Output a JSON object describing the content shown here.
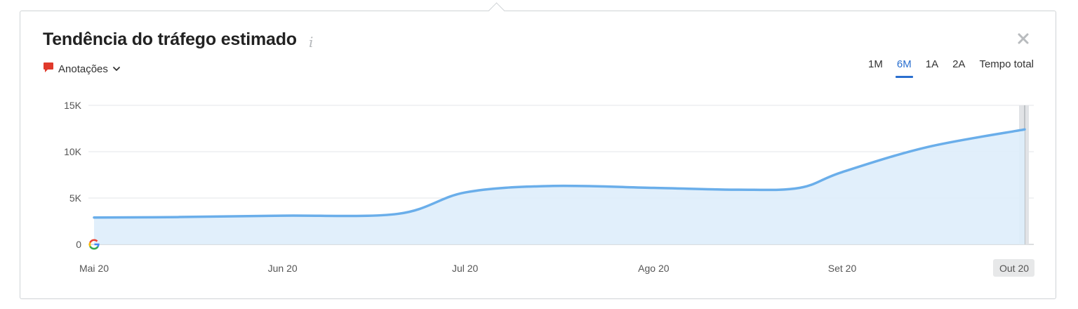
{
  "header": {
    "title": "Tendência do tráfego estimado",
    "info_icon": "info-icon",
    "close_icon": "close-icon"
  },
  "annotations": {
    "icon": "speech-bubble-icon",
    "label": "Anotações",
    "chevron": "chevron-down-icon"
  },
  "periods": [
    {
      "label": "1M",
      "active": false
    },
    {
      "label": "6M",
      "active": true
    },
    {
      "label": "1A",
      "active": false
    },
    {
      "label": "2A",
      "active": false
    },
    {
      "label": "Tempo total",
      "active": false
    }
  ],
  "colors": {
    "accent": "#2a6fcf",
    "line": "#6aaeea",
    "area": "#deedfb",
    "grid": "#e3e6e8"
  },
  "chart_data": {
    "type": "area",
    "title": "",
    "xlabel": "",
    "ylabel": "",
    "x_ticks": [
      "Mai 20",
      "Jun 20",
      "Jul 20",
      "Ago 20",
      "Set 20",
      "Out 20"
    ],
    "y_ticks": [
      "0",
      "5K",
      "10K",
      "15K"
    ],
    "ylim": [
      0,
      15000
    ],
    "grid": true,
    "highlighted_x": "Out 20",
    "series": [
      {
        "x": [
          "2020-05-01",
          "2020-05-15",
          "2020-06-01",
          "2020-06-20",
          "2020-07-01",
          "2020-07-15",
          "2020-08-01",
          "2020-08-15",
          "2020-08-25",
          "2020-09-01",
          "2020-09-15",
          "2020-10-01"
        ],
        "values": [
          2900,
          2950,
          3100,
          3300,
          5600,
          6300,
          6100,
          5900,
          6100,
          7800,
          10500,
          12400
        ]
      }
    ],
    "marker": "google-icon"
  }
}
